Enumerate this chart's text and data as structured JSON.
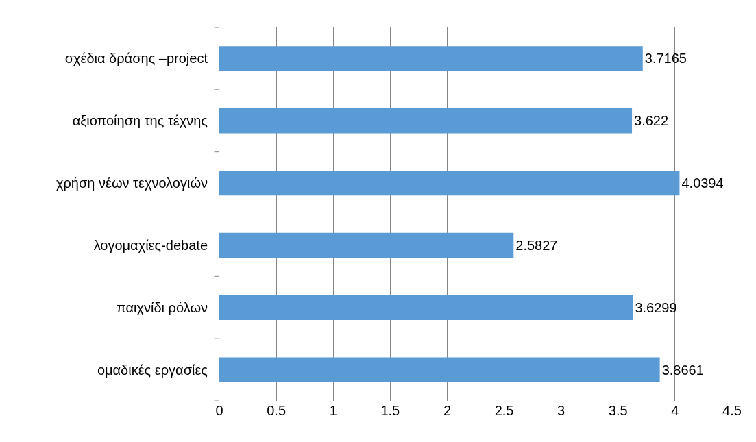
{
  "chart_data": {
    "type": "bar",
    "orientation": "horizontal",
    "categories": [
      "σχέδια δράσης –project",
      "αξιοποίηση της τέχνης",
      "χρήση νέων τεχνολογιών",
      "λογομαχίες-debate",
      "παιχνίδι ρόλων",
      "ομαδικές εργασίες"
    ],
    "values": [
      3.7165,
      3.622,
      4.0394,
      2.5827,
      3.6299,
      3.8661
    ],
    "color": "#5b9bd5",
    "xlim": [
      0,
      4.5
    ],
    "xticks": [
      0,
      0.5,
      1,
      1.5,
      2,
      2.5,
      3,
      3.5,
      4,
      4.5
    ],
    "grid": "x",
    "data_labels": true,
    "legend": false
  }
}
